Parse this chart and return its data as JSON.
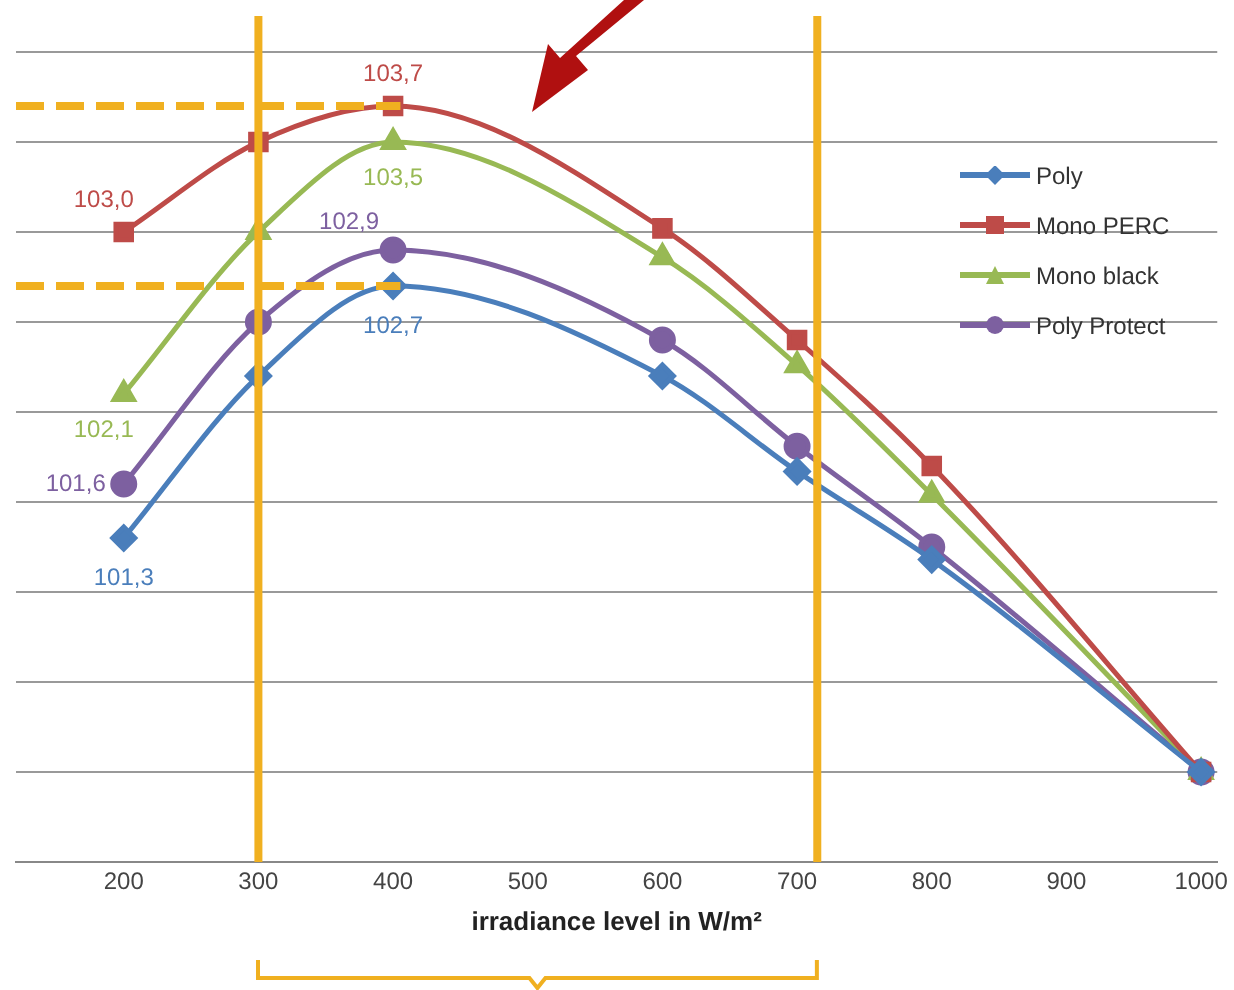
{
  "chart_data": {
    "type": "line",
    "xlabel": "irradiance level in W/m²",
    "x": [
      200,
      300,
      400,
      600,
      700,
      800,
      1000
    ],
    "xlim": [
      120,
      1012
    ],
    "xticks": [
      200,
      300,
      400,
      500,
      600,
      700,
      800,
      900,
      1000
    ],
    "ylim": [
      99.5,
      104.2
    ],
    "yticks": [
      {
        "value": 99.5,
        "label": null
      },
      {
        "value": 100,
        "label": null
      },
      {
        "value": 100.5,
        "label": null
      },
      {
        "value": 101,
        "label": null
      },
      {
        "value": 101.5,
        "label": null
      },
      {
        "value": 102,
        "label": null
      },
      {
        "value": 102.5,
        "label": null
      },
      {
        "value": 103,
        "label": null
      },
      {
        "value": 103.5,
        "label": null
      },
      {
        "value": 104,
        "label": null
      }
    ],
    "tick_labels": "x",
    "grid": "y",
    "legend": "right",
    "series": [
      {
        "name": "Poly",
        "color": "#4a7ebb",
        "marker": "diamond",
        "values": [
          101.3,
          102.2,
          102.7,
          102.2,
          101.67,
          101.18,
          100
        ],
        "value_labels": [
          "101,3",
          null,
          "102,7",
          null,
          null,
          null,
          null
        ]
      },
      {
        "name": "Mono PERC",
        "color": "#be4b48",
        "marker": "square",
        "values": [
          103.0,
          103.5,
          103.7,
          103.02,
          102.4,
          101.7,
          100
        ],
        "value_labels": [
          "103,0",
          null,
          "103,7",
          null,
          null,
          null,
          null
        ]
      },
      {
        "name": "Mono black",
        "color": "#98b954",
        "marker": "triangle",
        "values": [
          102.1,
          103.0,
          103.5,
          102.86,
          102.26,
          101.54,
          100
        ],
        "value_labels": [
          "102,1",
          null,
          "103,5",
          null,
          null,
          null,
          null
        ]
      },
      {
        "name": "Poly Protect",
        "color": "#7d60a0",
        "marker": "circle",
        "values": [
          101.6,
          102.5,
          102.9,
          102.4,
          101.81,
          101.25,
          100
        ],
        "value_labels": [
          "101,6",
          null,
          "102,9",
          null,
          null,
          null,
          null
        ]
      }
    ],
    "ref_lines": [
      {
        "axis": "x",
        "value": 300,
        "color": "#f0b020",
        "line_style": "solid"
      },
      {
        "axis": "x",
        "value": 715,
        "color": "#f0b020",
        "line_style": "solid"
      },
      {
        "axis": "y",
        "value": 103.7,
        "color": "#f0b020",
        "line_style": "dashed"
      },
      {
        "axis": "y",
        "value": 102.7,
        "color": "#f0b020",
        "line_style": "dashed"
      }
    ]
  }
}
